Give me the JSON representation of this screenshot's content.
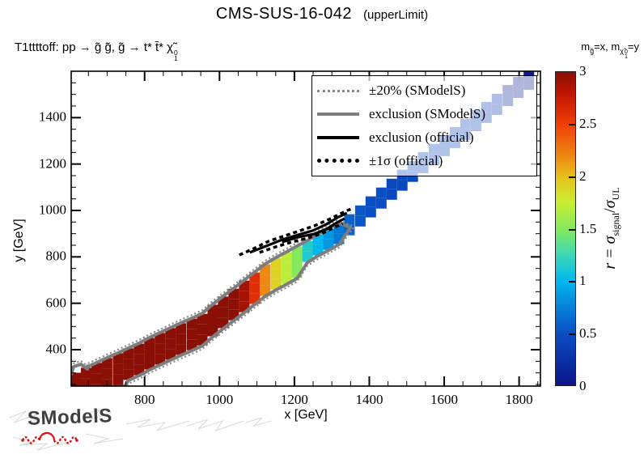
{
  "title": {
    "main": "CMS-SUS-16-042",
    "sub": "(upperLimit)"
  },
  "process_label": {
    "prefix": "T1ttttoff: pp ",
    "arrow1": "→",
    "gluinos": " g̃ g̃, g̃ ",
    "arrow2": "→",
    "tops": " t* t̄* ",
    "chi": "χ̃",
    "chi_sup": "0",
    "chi_sub": "1"
  },
  "mass_note": {
    "m1": "m",
    "s1": "g̃",
    "mid": "=x, ",
    "m2": "m",
    "s2": "χ̃",
    "s2_sup": "0",
    "s2_sub": "1",
    "end": "=y"
  },
  "axes": {
    "x_label": "x [GeV]",
    "y_label": "y [GeV]",
    "x_ticks": [
      800,
      1000,
      1200,
      1400,
      1600,
      1800
    ],
    "y_ticks": [
      400,
      600,
      800,
      1000,
      1200,
      1400
    ],
    "minor_step": 50,
    "x_range": [
      604,
      1857
    ],
    "y_range": [
      243,
      1600
    ]
  },
  "legend": {
    "items": [
      {
        "style": "gray-dotted",
        "label": "±20% (SModelS)"
      },
      {
        "style": "gray-solid",
        "label": "exclusion (SModelS)"
      },
      {
        "style": "black-solid",
        "label": "exclusion (official)"
      },
      {
        "style": "black-dotted",
        "label": "±1σ (official)"
      }
    ]
  },
  "colorbar": {
    "ticks": [
      "0",
      "0.5",
      "1",
      "1.5",
      "2",
      "2.5",
      "3"
    ],
    "range": [
      0,
      3
    ],
    "label_pieces": {
      "r": "r = ",
      "sigma1": "σ",
      "sub1": "signal",
      "slash": "/",
      "sigma2": "σ",
      "sub2": "UL"
    }
  },
  "logo": {
    "text": "SModelS",
    "accent_color": "#dd1111",
    "text_color": "#3f3f3f"
  },
  "chart_data": {
    "type": "heatmap",
    "title": "CMS-SUS-16-042 (upperLimit)",
    "xlabel": "x [GeV]",
    "ylabel": "y [GeV]",
    "zlabel": "r = sigma_signal / sigma_UL",
    "xlim": [
      604,
      1857
    ],
    "ylim": [
      243,
      1600
    ],
    "zlim": [
      0,
      3
    ],
    "palette": [
      {
        "t": 0.0,
        "c": "#0b1487"
      },
      {
        "t": 0.167,
        "c": "#0a4ec4"
      },
      {
        "t": 0.333,
        "c": "#00b7ee"
      },
      {
        "t": 0.42,
        "c": "#3fd9b5"
      },
      {
        "t": 0.5,
        "c": "#85e95c"
      },
      {
        "t": 0.583,
        "c": "#c9ee33"
      },
      {
        "t": 0.667,
        "c": "#e9be1c"
      },
      {
        "t": 0.75,
        "c": "#ee7a10"
      },
      {
        "t": 0.833,
        "c": "#ef3f06"
      },
      {
        "t": 0.93,
        "c": "#c01402"
      },
      {
        "t": 1.0,
        "c": "#8a1005"
      }
    ],
    "band_columns_format": "x_GeV, y_GeV, r_value, thickness_cells",
    "band_columns": [
      [
        616,
        278,
        3,
        4
      ],
      [
        644,
        299,
        3,
        4
      ],
      [
        672,
        320,
        3,
        4
      ],
      [
        700,
        341,
        3,
        4
      ],
      [
        729,
        362,
        3,
        4
      ],
      [
        757,
        383,
        3,
        3
      ],
      [
        785,
        403,
        3,
        3
      ],
      [
        813,
        428,
        3,
        3
      ],
      [
        841,
        449,
        3,
        3
      ],
      [
        869,
        470,
        3,
        3
      ],
      [
        897,
        491,
        3,
        3
      ],
      [
        926,
        511,
        3,
        3
      ],
      [
        954,
        532,
        3,
        3
      ],
      [
        982,
        571,
        3,
        3
      ],
      [
        1010,
        606,
        3,
        3
      ],
      [
        1038,
        640,
        3,
        3
      ],
      [
        1066,
        675,
        2.9,
        3
      ],
      [
        1094,
        710,
        2.6,
        3
      ],
      [
        1122,
        745,
        2.2,
        3
      ],
      [
        1151,
        773,
        1.9,
        3
      ],
      [
        1179,
        797,
        1.7,
        3
      ],
      [
        1207,
        822,
        1.5,
        3
      ],
      [
        1235,
        846,
        1.15,
        2
      ],
      [
        1263,
        874,
        1.0,
        2
      ],
      [
        1291,
        898,
        0.85,
        2
      ],
      [
        1319,
        923,
        0.7,
        2
      ],
      [
        1347,
        961,
        0.6,
        2
      ],
      [
        1376,
        999,
        0.55,
        2
      ],
      [
        1404,
        1038,
        0.5,
        2
      ],
      [
        1432,
        1076,
        0.5,
        2
      ],
      [
        1460,
        1114,
        0.45,
        2
      ],
      [
        1488,
        1153,
        0.45,
        2
      ],
      [
        1516,
        1191,
        0.45,
        2
      ],
      [
        1544,
        1229,
        0.45,
        2
      ],
      [
        1573,
        1264,
        0.45,
        2
      ],
      [
        1601,
        1302,
        0.45,
        2
      ],
      [
        1629,
        1337,
        0.45,
        2
      ],
      [
        1657,
        1372,
        0.45,
        2
      ],
      [
        1685,
        1410,
        0.4,
        2
      ],
      [
        1713,
        1445,
        0.4,
        2
      ],
      [
        1741,
        1480,
        0.3,
        2
      ],
      [
        1770,
        1518,
        0.15,
        2
      ],
      [
        1798,
        1553,
        0.08,
        2
      ],
      [
        1826,
        1588,
        0.05,
        2
      ]
    ],
    "smodels_contours_note": "gray solid = SModelS exclusion loop around band, gray dotted = ±20% band edges",
    "overlays": [
      {
        "name": "official-exclusion-line",
        "style": "solid",
        "color": "#000000",
        "width": 3.2,
        "points": [
          [
            1081,
            819
          ],
          [
            1124,
            846
          ],
          [
            1167,
            874
          ],
          [
            1210,
            895
          ],
          [
            1249,
            913
          ],
          [
            1286,
            941
          ],
          [
            1318,
            972
          ],
          [
            1340,
            989
          ]
        ]
      },
      {
        "name": "official-exclusion-branch",
        "style": "solid",
        "color": "#000000",
        "width": 3.2,
        "points": [
          [
            1167,
            864
          ],
          [
            1210,
            885
          ],
          [
            1254,
            899
          ],
          [
            1286,
            920
          ],
          [
            1314,
            948
          ],
          [
            1334,
            965
          ]
        ]
      },
      {
        "name": "official-pm1sigma-upper",
        "style": "dotted",
        "color": "#000000",
        "width": 3.5,
        "points": [
          [
            1053,
            808
          ],
          [
            1092,
            836
          ],
          [
            1131,
            867
          ],
          [
            1169,
            888
          ],
          [
            1208,
            909
          ],
          [
            1254,
            934
          ],
          [
            1297,
            965
          ],
          [
            1336,
            996
          ],
          [
            1357,
            1010
          ]
        ]
      },
      {
        "name": "official-pm1sigma-lower",
        "style": "dotted",
        "color": "#000000",
        "width": 3.5,
        "points": [
          [
            1107,
            819
          ],
          [
            1150,
            843
          ],
          [
            1193,
            864
          ],
          [
            1236,
            881
          ],
          [
            1275,
            902
          ],
          [
            1307,
            927
          ],
          [
            1329,
            944
          ]
        ]
      }
    ]
  }
}
